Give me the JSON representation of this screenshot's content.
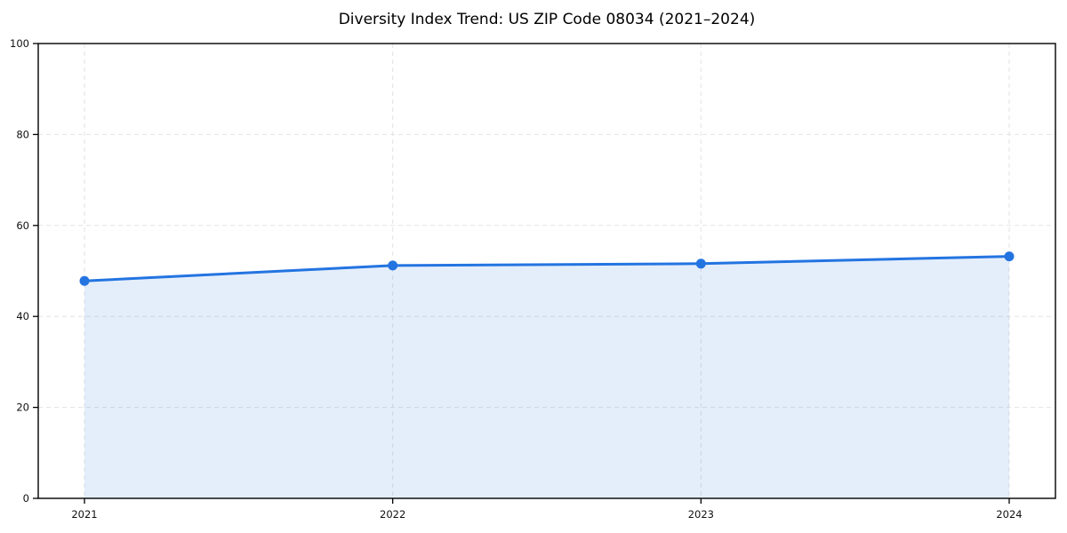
{
  "chart_data": {
    "type": "line",
    "title": "Diversity Index Trend: US ZIP Code 08034 (2021–2024)",
    "xlabel": "",
    "ylabel": "",
    "categories": [
      "2021",
      "2022",
      "2023",
      "2024"
    ],
    "series": [
      {
        "name": "Diversity Index",
        "values": [
          47.8,
          51.2,
          51.6,
          53.2
        ]
      }
    ],
    "ylim": [
      0,
      100
    ],
    "yticks": [
      0,
      20,
      40,
      60,
      80,
      100
    ],
    "grid": "dashed",
    "legend": "none",
    "area_fill_to_zero": true,
    "colors": {
      "line": "#2374e1",
      "marker": "#2374e1",
      "area_fill": "rgba(35,116,225,0.12)",
      "grid": "#e3e3e3",
      "spine": "#000000",
      "tick_text": "#111111",
      "background": "#ffffff"
    }
  }
}
